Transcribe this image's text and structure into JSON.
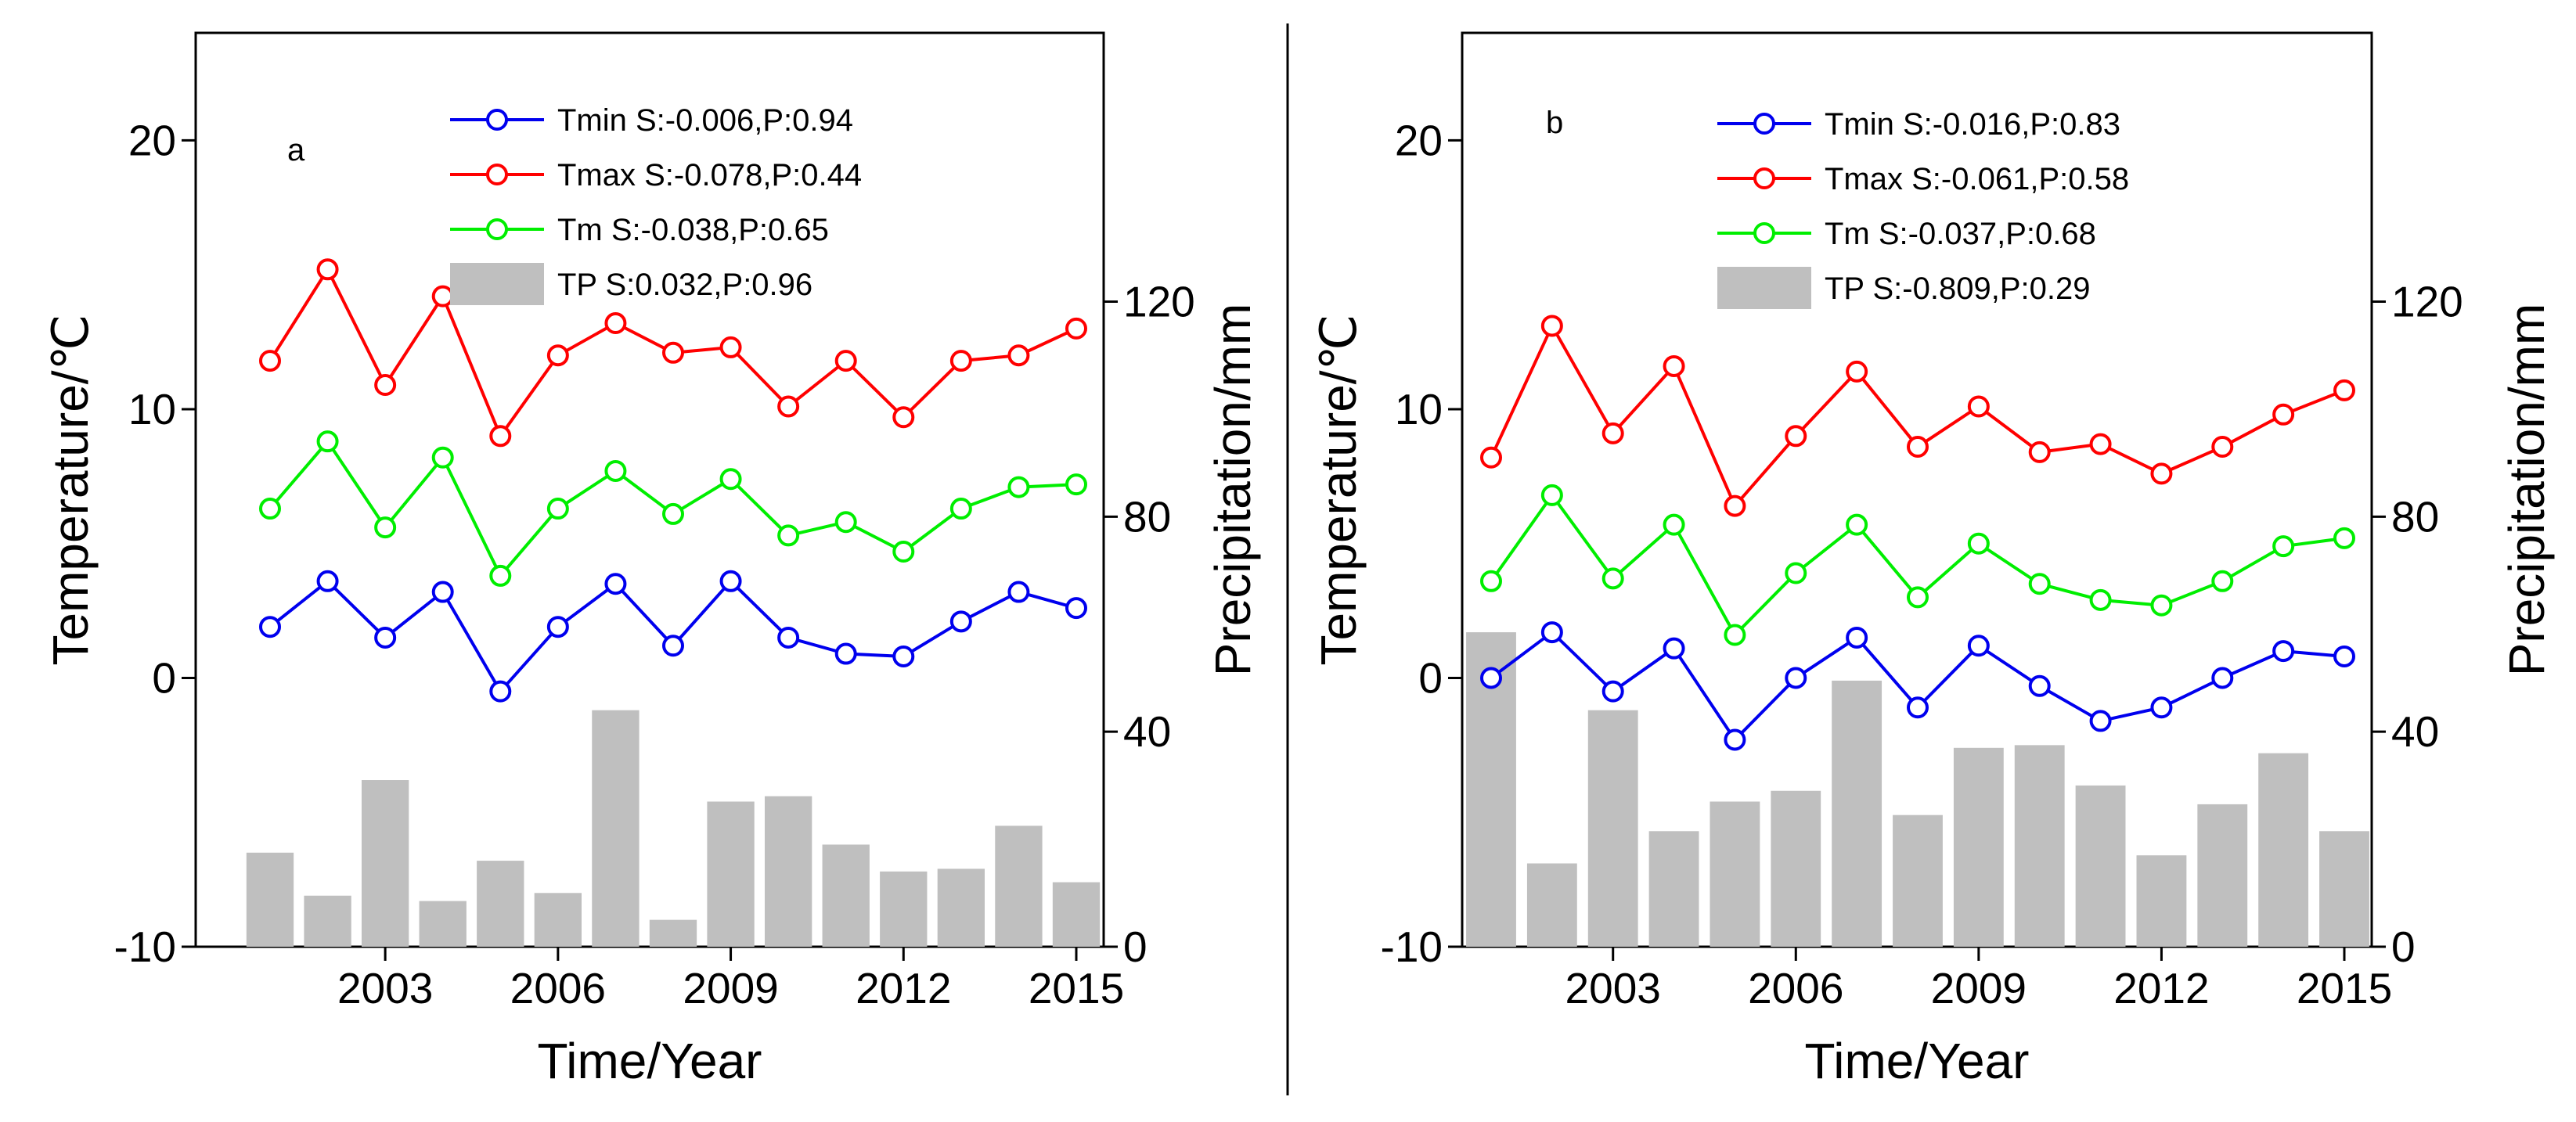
{
  "chart_data": [
    {
      "type": "bar+line",
      "panel_label": "a",
      "xlabel": "Time/Year",
      "ylabel_left": "Temperature/℃",
      "ylabel_right": "Precipitation/mm",
      "x_ticks": [
        2003,
        2006,
        2009,
        2012,
        2015
      ],
      "ylim_left": [
        -10,
        24
      ],
      "yticks_left": [
        -10,
        0,
        10,
        20
      ],
      "ylim_right": [
        0,
        170
      ],
      "yticks_right": [
        0,
        40,
        80,
        120
      ],
      "grid": false,
      "years": [
        2001,
        2002,
        2003,
        2004,
        2005,
        2006,
        2007,
        2008,
        2009,
        2010,
        2011,
        2012,
        2013,
        2014,
        2015
      ],
      "series": [
        {
          "name": "Tmax",
          "legend": "Tmax S:-0.078,P:0.44",
          "color": "#ff0000",
          "axis": "left",
          "kind": "line",
          "values": [
            11.8,
            15.2,
            10.9,
            14.2,
            9.0,
            12.0,
            13.2,
            12.1,
            12.3,
            10.1,
            11.8,
            9.7,
            11.8,
            12.0,
            13.0
          ]
        },
        {
          "name": "Tm",
          "legend": "Tm S:-0.038,P:0.65",
          "color": "#00ee00",
          "axis": "left",
          "kind": "line",
          "values": [
            6.3,
            8.8,
            5.6,
            8.2,
            3.8,
            6.3,
            7.7,
            6.1,
            7.4,
            5.3,
            5.8,
            4.7,
            6.3,
            7.1,
            7.2
          ]
        },
        {
          "name": "Tmin",
          "legend": "Tmin S:-0.006,P:0.94",
          "color": "#0000ee",
          "axis": "left",
          "kind": "line",
          "values": [
            1.9,
            3.6,
            1.5,
            3.2,
            -0.5,
            1.9,
            3.5,
            1.2,
            3.6,
            1.5,
            0.9,
            0.8,
            2.1,
            3.2,
            2.6
          ]
        },
        {
          "name": "TP",
          "legend": "TP S:0.032,P:0.96",
          "color": "#bfbfbf",
          "axis": "right",
          "kind": "bar",
          "values": [
            17.5,
            9.5,
            31.0,
            8.5,
            16.0,
            10.0,
            44.0,
            5.0,
            27.0,
            28.0,
            19.0,
            14.0,
            14.5,
            22.5,
            12.0
          ]
        }
      ]
    },
    {
      "type": "bar+line",
      "panel_label": "b",
      "xlabel": "Time/Year",
      "ylabel_left": "Temperature/℃",
      "ylabel_right": "Precipitation/mm",
      "x_ticks": [
        2003,
        2006,
        2009,
        2012,
        2015
      ],
      "ylim_left": [
        -10,
        24
      ],
      "yticks_left": [
        -10,
        0,
        10,
        20
      ],
      "ylim_right": [
        0,
        170
      ],
      "yticks_right": [
        0,
        40,
        80,
        120
      ],
      "grid": false,
      "years": [
        2001,
        2002,
        2003,
        2004,
        2005,
        2006,
        2007,
        2008,
        2009,
        2010,
        2011,
        2012,
        2013,
        2014,
        2015
      ],
      "series": [
        {
          "name": "Tmax",
          "legend": "Tmax S:-0.061,P:0.58",
          "color": "#ff0000",
          "axis": "left",
          "kind": "line",
          "values": [
            8.2,
            13.1,
            9.1,
            11.6,
            6.4,
            9.0,
            11.4,
            8.6,
            10.1,
            8.4,
            8.7,
            7.6,
            8.6,
            9.8,
            10.7
          ]
        },
        {
          "name": "Tm",
          "legend": "Tm S:-0.037,P:0.68",
          "color": "#00ee00",
          "axis": "left",
          "kind": "line",
          "values": [
            3.6,
            6.8,
            3.7,
            5.7,
            1.6,
            3.9,
            5.7,
            3.0,
            5.0,
            3.5,
            2.9,
            2.7,
            3.6,
            4.9,
            5.2
          ]
        },
        {
          "name": "Tmin",
          "legend": "Tmin S:-0.016,P:0.83",
          "color": "#0000ee",
          "axis": "left",
          "kind": "line",
          "values": [
            0.0,
            1.7,
            -0.5,
            1.1,
            -2.3,
            0.0,
            1.5,
            -1.1,
            1.2,
            -0.3,
            -1.6,
            -1.1,
            0.0,
            1.0,
            0.8
          ]
        },
        {
          "name": "TP",
          "legend": "TP S:-0.809,P:0.29",
          "color": "#bfbfbf",
          "axis": "right",
          "kind": "bar",
          "values": [
            58.5,
            15.5,
            44.0,
            21.5,
            27.0,
            29.0,
            49.5,
            24.5,
            37.0,
            37.5,
            30.0,
            17.0,
            26.5,
            36.0,
            21.5
          ]
        }
      ]
    }
  ]
}
